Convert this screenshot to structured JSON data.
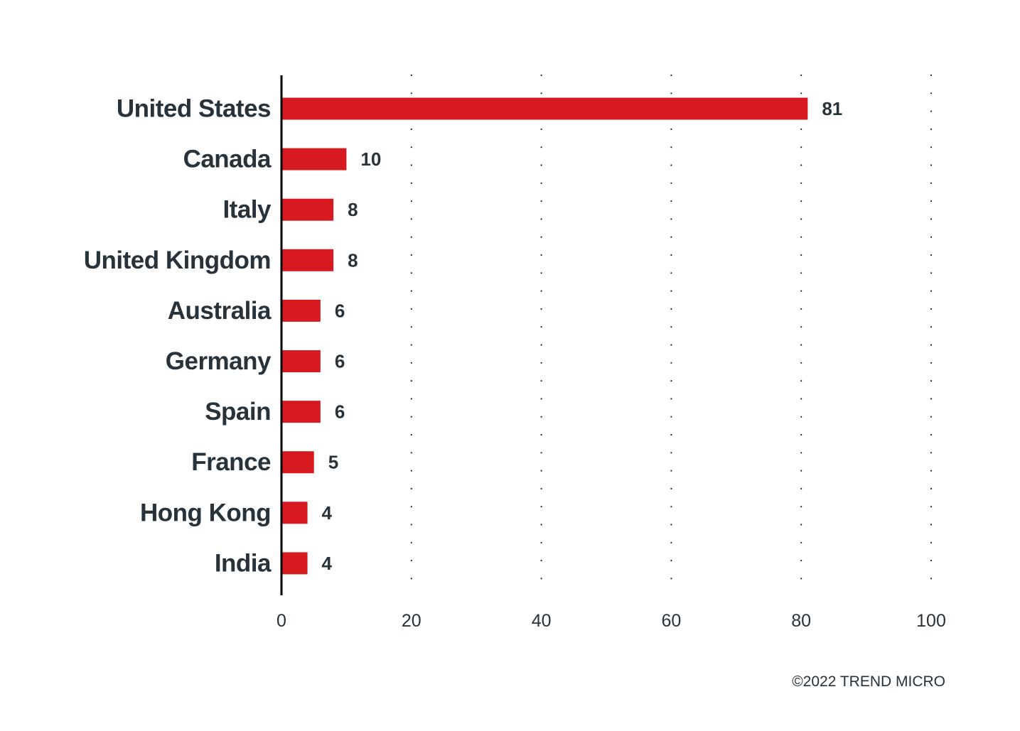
{
  "chart_data": {
    "type": "bar",
    "orientation": "horizontal",
    "categories": [
      "United States",
      "Canada",
      "Italy",
      "United Kingdom",
      "Australia",
      "Germany",
      "Spain",
      "France",
      "Hong Kong",
      "India"
    ],
    "values": [
      81,
      10,
      8,
      8,
      6,
      6,
      6,
      5,
      4,
      4
    ],
    "xlim": [
      0,
      100
    ],
    "xticks": [
      0,
      20,
      40,
      60,
      80,
      100
    ],
    "grid": "dotted-vertical",
    "bar_color": "#d71920",
    "text_color": "#27323a"
  },
  "footer": {
    "credit": "©2022 TREND MICRO"
  }
}
